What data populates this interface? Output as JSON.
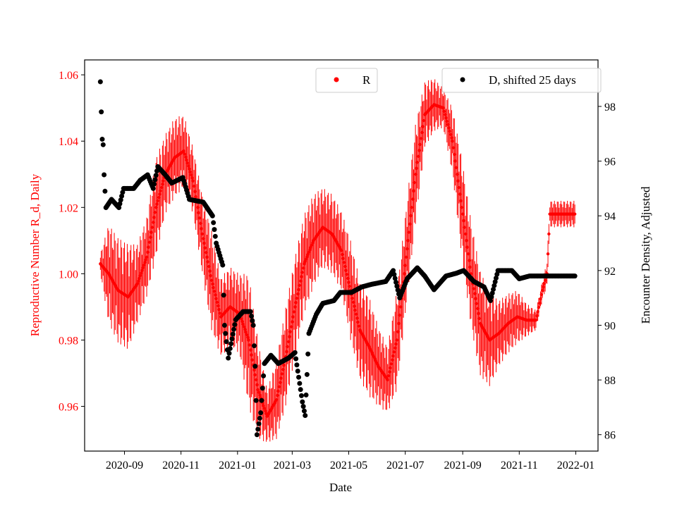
{
  "chart_data": {
    "type": "scatter",
    "xlabel": "Date",
    "ylabel_left": "Reproductive Number R_d, Daily",
    "ylabel_right": "Encounter Density, Adjusted",
    "xlim": [
      "2020-07-20",
      "2022-01-25"
    ],
    "ylim_left": [
      0.9465,
      1.0645
    ],
    "ylim_right": [
      85.4,
      99.7
    ],
    "x_ticks": [
      "2020-09",
      "2020-11",
      "2021-01",
      "2021-03",
      "2021-05",
      "2021-07",
      "2021-09",
      "2021-11",
      "2022-01"
    ],
    "y_ticks_left": [
      "0.96",
      "0.98",
      "1.00",
      "1.02",
      "1.04",
      "1.06"
    ],
    "y_ticks_right": [
      "86",
      "88",
      "90",
      "92",
      "94",
      "96",
      "98"
    ],
    "left_color": "#ff0000",
    "legend": [
      {
        "label": "R",
        "color": "#ff0000",
        "placement": "top-center"
      },
      {
        "label": "D, shifted 25 days",
        "color": "#000000",
        "placement": "top-right"
      }
    ],
    "series": [
      {
        "name": "R",
        "axis": "left",
        "color": "#ff0000",
        "points": [
          [
            "2020-08-06",
            1.003,
            0.003
          ],
          [
            "2020-08-15",
            1.0,
            0.015
          ],
          [
            "2020-08-25",
            0.995,
            0.016
          ],
          [
            "2020-09-05",
            0.993,
            0.016
          ],
          [
            "2020-09-15",
            0.997,
            0.012
          ],
          [
            "2020-09-25",
            1.005,
            0.012
          ],
          [
            "2020-10-05",
            1.02,
            0.015
          ],
          [
            "2020-10-15",
            1.03,
            0.012
          ],
          [
            "2020-10-25",
            1.035,
            0.012
          ],
          [
            "2020-11-04",
            1.037,
            0.011
          ],
          [
            "2020-11-14",
            1.028,
            0.01
          ],
          [
            "2020-11-24",
            1.012,
            0.012
          ],
          [
            "2020-12-04",
            0.998,
            0.015
          ],
          [
            "2020-12-14",
            0.987,
            0.012
          ],
          [
            "2020-12-24",
            0.99,
            0.012
          ],
          [
            "2021-01-03",
            0.988,
            0.012
          ],
          [
            "2021-01-13",
            0.98,
            0.02
          ],
          [
            "2021-01-23",
            0.965,
            0.015
          ],
          [
            "2021-02-02",
            0.957,
            0.008
          ],
          [
            "2021-02-12",
            0.962,
            0.012
          ],
          [
            "2021-02-22",
            0.975,
            0.015
          ],
          [
            "2021-03-04",
            0.99,
            0.015
          ],
          [
            "2021-03-14",
            1.003,
            0.015
          ],
          [
            "2021-03-24",
            1.01,
            0.014
          ],
          [
            "2021-04-03",
            1.014,
            0.012
          ],
          [
            "2021-04-13",
            1.012,
            0.012
          ],
          [
            "2021-04-23",
            1.007,
            0.012
          ],
          [
            "2021-05-03",
            0.995,
            0.015
          ],
          [
            "2021-05-13",
            0.983,
            0.015
          ],
          [
            "2021-05-23",
            0.978,
            0.015
          ],
          [
            "2021-06-02",
            0.972,
            0.012
          ],
          [
            "2021-06-12",
            0.968,
            0.01
          ],
          [
            "2021-06-22",
            0.98,
            0.015
          ],
          [
            "2021-07-02",
            1.005,
            0.015
          ],
          [
            "2021-07-12",
            1.03,
            0.015
          ],
          [
            "2021-07-22",
            1.048,
            0.01
          ],
          [
            "2021-08-01",
            1.051,
            0.008
          ],
          [
            "2021-08-11",
            1.05,
            0.006
          ],
          [
            "2021-08-21",
            1.04,
            0.01
          ],
          [
            "2021-08-31",
            1.02,
            0.015
          ],
          [
            "2021-09-10",
            1.0,
            0.016
          ],
          [
            "2021-09-20",
            0.985,
            0.016
          ],
          [
            "2021-09-30",
            0.98,
            0.014
          ],
          [
            "2021-10-10",
            0.982,
            0.01
          ],
          [
            "2021-10-20",
            0.985,
            0.009
          ],
          [
            "2021-10-30",
            0.987,
            0.008
          ],
          [
            "2021-11-09",
            0.986,
            0.005
          ],
          [
            "2021-11-19",
            0.986,
            0.003
          ],
          [
            "2021-11-26",
            0.995,
            0.003
          ],
          [
            "2021-12-01",
            1.0,
            0.004
          ],
          [
            "2021-12-04",
            1.018,
            0.004
          ],
          [
            "2021-12-15",
            1.018,
            0.004
          ],
          [
            "2021-12-25",
            1.018,
            0.004
          ],
          [
            "2021-12-31",
            1.018,
            0.004
          ]
        ]
      },
      {
        "name": "D, shifted 25 days",
        "axis": "right",
        "color": "#000000",
        "points": [
          [
            "2020-08-06",
            98.9
          ],
          [
            "2020-08-07",
            97.8
          ],
          [
            "2020-08-08",
            96.8
          ],
          [
            "2020-08-09",
            96.6
          ],
          [
            "2020-08-10",
            95.5
          ],
          [
            "2020-08-12",
            94.3
          ],
          [
            "2020-08-18",
            94.6
          ],
          [
            "2020-08-26",
            94.3
          ],
          [
            "2020-08-31",
            95.0
          ],
          [
            "2020-09-11",
            95.0
          ],
          [
            "2020-09-18",
            95.3
          ],
          [
            "2020-09-26",
            95.5
          ],
          [
            "2020-10-02",
            95.0
          ],
          [
            "2020-10-07",
            95.8
          ],
          [
            "2020-10-15",
            95.5
          ],
          [
            "2020-10-22",
            95.2
          ],
          [
            "2020-11-03",
            95.4
          ],
          [
            "2020-11-10",
            94.6
          ],
          [
            "2020-11-25",
            94.5
          ],
          [
            "2020-12-05",
            94.0
          ],
          [
            "2020-12-09",
            93.0
          ],
          [
            "2020-12-16",
            92.2
          ],
          [
            "2020-12-18",
            90.0
          ],
          [
            "2020-12-22",
            88.8
          ],
          [
            "2020-12-26",
            89.5
          ],
          [
            "2020-12-30",
            90.2
          ],
          [
            "2021-01-07",
            90.5
          ],
          [
            "2021-01-15",
            90.5
          ],
          [
            "2021-01-18",
            90.0
          ],
          [
            "2021-01-20",
            88.5
          ],
          [
            "2021-01-22",
            86.0
          ],
          [
            "2021-01-26",
            86.8
          ],
          [
            "2021-01-30",
            88.6
          ],
          [
            "2021-02-06",
            88.9
          ],
          [
            "2021-02-14",
            88.6
          ],
          [
            "2021-02-25",
            88.8
          ],
          [
            "2021-03-04",
            89.0
          ],
          [
            "2021-03-12",
            87.2
          ],
          [
            "2021-03-15",
            86.7
          ],
          [
            "2021-03-19",
            89.7
          ],
          [
            "2021-03-27",
            90.4
          ],
          [
            "2021-04-03",
            90.8
          ],
          [
            "2021-04-15",
            90.9
          ],
          [
            "2021-04-22",
            91.2
          ],
          [
            "2021-05-04",
            91.2
          ],
          [
            "2021-05-15",
            91.4
          ],
          [
            "2021-05-26",
            91.5
          ],
          [
            "2021-06-10",
            91.6
          ],
          [
            "2021-06-18",
            92.0
          ],
          [
            "2021-06-25",
            91.0
          ],
          [
            "2021-07-03",
            91.7
          ],
          [
            "2021-07-14",
            92.1
          ],
          [
            "2021-07-22",
            91.8
          ],
          [
            "2021-08-01",
            91.3
          ],
          [
            "2021-08-14",
            91.8
          ],
          [
            "2021-08-25",
            91.9
          ],
          [
            "2021-09-02",
            92.0
          ],
          [
            "2021-09-13",
            91.6
          ],
          [
            "2021-09-24",
            91.4
          ],
          [
            "2021-10-01",
            90.9
          ],
          [
            "2021-10-09",
            92.0
          ],
          [
            "2021-10-24",
            92.0
          ],
          [
            "2021-11-01",
            91.7
          ],
          [
            "2021-11-12",
            91.8
          ],
          [
            "2021-12-31",
            91.8
          ]
        ]
      }
    ]
  }
}
